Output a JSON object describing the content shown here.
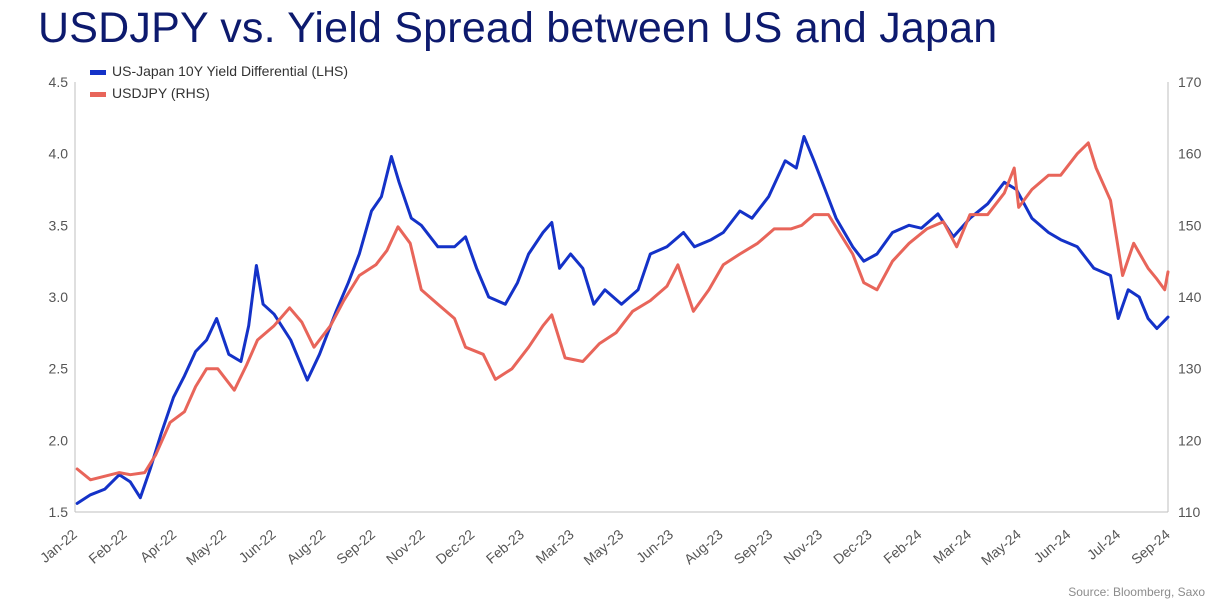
{
  "title": "USDJPY vs. Yield Spread between US and Japan",
  "source": "Source: Bloomberg, Saxo",
  "chart_data": {
    "type": "line",
    "title": "USDJPY vs. Yield Spread between US and Japan",
    "x_ticks": [
      "Jan-22",
      "Feb-22",
      "Apr-22",
      "May-22",
      "Jun-22",
      "Aug-22",
      "Sep-22",
      "Nov-22",
      "Dec-22",
      "Feb-23",
      "Mar-23",
      "May-23",
      "Jun-23",
      "Aug-23",
      "Sep-23",
      "Nov-23",
      "Dec-23",
      "Feb-24",
      "Mar-24",
      "May-24",
      "Jun-24",
      "Jul-24",
      "Sep-24"
    ],
    "x_range": [
      "2022-01-01",
      "2024-09-15"
    ],
    "y_left": {
      "ticks": [
        "1.5",
        "2.0",
        "2.5",
        "3.0",
        "3.5",
        "4.0",
        "4.5"
      ],
      "min": 1.5,
      "max": 4.5
    },
    "y_right": {
      "ticks": [
        "110",
        "120",
        "130",
        "140",
        "150",
        "160",
        "170"
      ],
      "min": 110,
      "max": 170
    },
    "grid": false,
    "legend_position": "top-left",
    "series": [
      {
        "name": "US-Japan 10Y Yield Differential (LHS)",
        "axis": "left",
        "color": "#1432c8",
        "points": [
          [
            "2022-01-03",
            1.56
          ],
          [
            "2022-01-15",
            1.62
          ],
          [
            "2022-01-28",
            1.66
          ],
          [
            "2022-02-10",
            1.76
          ],
          [
            "2022-02-20",
            1.71
          ],
          [
            "2022-03-01",
            1.6
          ],
          [
            "2022-03-10",
            1.8
          ],
          [
            "2022-03-20",
            2.05
          ],
          [
            "2022-03-31",
            2.3
          ],
          [
            "2022-04-10",
            2.45
          ],
          [
            "2022-04-20",
            2.62
          ],
          [
            "2022-04-30",
            2.7
          ],
          [
            "2022-05-09",
            2.85
          ],
          [
            "2022-05-20",
            2.6
          ],
          [
            "2022-05-31",
            2.55
          ],
          [
            "2022-06-07",
            2.8
          ],
          [
            "2022-06-14",
            3.22
          ],
          [
            "2022-06-20",
            2.95
          ],
          [
            "2022-06-30",
            2.88
          ],
          [
            "2022-07-15",
            2.7
          ],
          [
            "2022-07-30",
            2.42
          ],
          [
            "2022-08-10",
            2.6
          ],
          [
            "2022-08-25",
            2.9
          ],
          [
            "2022-09-05",
            3.1
          ],
          [
            "2022-09-15",
            3.3
          ],
          [
            "2022-09-26",
            3.6
          ],
          [
            "2022-10-05",
            3.7
          ],
          [
            "2022-10-14",
            3.98
          ],
          [
            "2022-10-21",
            3.8
          ],
          [
            "2022-11-01",
            3.55
          ],
          [
            "2022-11-10",
            3.5
          ],
          [
            "2022-11-25",
            3.35
          ],
          [
            "2022-12-10",
            3.35
          ],
          [
            "2022-12-20",
            3.42
          ],
          [
            "2022-12-30",
            3.2
          ],
          [
            "2023-01-10",
            3.0
          ],
          [
            "2023-01-25",
            2.95
          ],
          [
            "2023-02-05",
            3.1
          ],
          [
            "2023-02-15",
            3.3
          ],
          [
            "2023-02-28",
            3.45
          ],
          [
            "2023-03-08",
            3.52
          ],
          [
            "2023-03-15",
            3.2
          ],
          [
            "2023-03-25",
            3.3
          ],
          [
            "2023-04-05",
            3.2
          ],
          [
            "2023-04-15",
            2.95
          ],
          [
            "2023-04-25",
            3.05
          ],
          [
            "2023-05-10",
            2.95
          ],
          [
            "2023-05-25",
            3.05
          ],
          [
            "2023-06-05",
            3.3
          ],
          [
            "2023-06-20",
            3.35
          ],
          [
            "2023-07-05",
            3.45
          ],
          [
            "2023-07-15",
            3.35
          ],
          [
            "2023-07-30",
            3.4
          ],
          [
            "2023-08-10",
            3.45
          ],
          [
            "2023-08-25",
            3.6
          ],
          [
            "2023-09-05",
            3.55
          ],
          [
            "2023-09-20",
            3.7
          ],
          [
            "2023-10-05",
            3.95
          ],
          [
            "2023-10-15",
            3.9
          ],
          [
            "2023-10-22",
            4.12
          ],
          [
            "2023-10-31",
            3.95
          ],
          [
            "2023-11-10",
            3.75
          ],
          [
            "2023-11-20",
            3.55
          ],
          [
            "2023-12-05",
            3.35
          ],
          [
            "2023-12-15",
            3.25
          ],
          [
            "2023-12-27",
            3.3
          ],
          [
            "2024-01-10",
            3.45
          ],
          [
            "2024-01-25",
            3.5
          ],
          [
            "2024-02-05",
            3.48
          ],
          [
            "2024-02-20",
            3.58
          ],
          [
            "2024-03-05",
            3.42
          ],
          [
            "2024-03-20",
            3.55
          ],
          [
            "2024-04-05",
            3.65
          ],
          [
            "2024-04-20",
            3.8
          ],
          [
            "2024-05-01",
            3.75
          ],
          [
            "2024-05-15",
            3.55
          ],
          [
            "2024-05-30",
            3.45
          ],
          [
            "2024-06-10",
            3.4
          ],
          [
            "2024-06-25",
            3.35
          ],
          [
            "2024-07-10",
            3.2
          ],
          [
            "2024-07-25",
            3.15
          ],
          [
            "2024-08-01",
            2.85
          ],
          [
            "2024-08-10",
            3.05
          ],
          [
            "2024-08-20",
            3.0
          ],
          [
            "2024-08-28",
            2.85
          ],
          [
            "2024-09-05",
            2.78
          ],
          [
            "2024-09-15",
            2.86
          ]
        ]
      },
      {
        "name": "USDJPY (RHS)",
        "axis": "right",
        "color": "#e8655a",
        "points": [
          [
            "2022-01-03",
            116.0
          ],
          [
            "2022-01-15",
            114.5
          ],
          [
            "2022-01-28",
            115.0
          ],
          [
            "2022-02-10",
            115.5
          ],
          [
            "2022-02-20",
            115.2
          ],
          [
            "2022-03-05",
            115.5
          ],
          [
            "2022-03-15",
            118.0
          ],
          [
            "2022-03-28",
            122.5
          ],
          [
            "2022-04-10",
            124.0
          ],
          [
            "2022-04-20",
            127.5
          ],
          [
            "2022-04-30",
            130.0
          ],
          [
            "2022-05-10",
            130.0
          ],
          [
            "2022-05-25",
            127.0
          ],
          [
            "2022-06-05",
            130.5
          ],
          [
            "2022-06-15",
            134.0
          ],
          [
            "2022-06-30",
            136.0
          ],
          [
            "2022-07-14",
            138.5
          ],
          [
            "2022-07-25",
            136.5
          ],
          [
            "2022-08-05",
            133.0
          ],
          [
            "2022-08-20",
            136.0
          ],
          [
            "2022-09-01",
            139.5
          ],
          [
            "2022-09-15",
            143.0
          ],
          [
            "2022-09-30",
            144.5
          ],
          [
            "2022-10-10",
            146.5
          ],
          [
            "2022-10-20",
            149.8
          ],
          [
            "2022-10-31",
            147.5
          ],
          [
            "2022-11-10",
            141.0
          ],
          [
            "2022-11-25",
            139.0
          ],
          [
            "2022-12-10",
            137.0
          ],
          [
            "2022-12-20",
            133.0
          ],
          [
            "2023-01-05",
            132.0
          ],
          [
            "2023-01-16",
            128.5
          ],
          [
            "2023-01-31",
            130.0
          ],
          [
            "2023-02-15",
            133.0
          ],
          [
            "2023-02-28",
            136.0
          ],
          [
            "2023-03-08",
            137.5
          ],
          [
            "2023-03-20",
            131.5
          ],
          [
            "2023-04-05",
            131.0
          ],
          [
            "2023-04-20",
            133.5
          ],
          [
            "2023-05-05",
            135.0
          ],
          [
            "2023-05-20",
            138.0
          ],
          [
            "2023-06-05",
            139.5
          ],
          [
            "2023-06-20",
            141.5
          ],
          [
            "2023-06-30",
            144.5
          ],
          [
            "2023-07-14",
            138.0
          ],
          [
            "2023-07-28",
            141.0
          ],
          [
            "2023-08-10",
            144.5
          ],
          [
            "2023-08-25",
            146.0
          ],
          [
            "2023-09-10",
            147.5
          ],
          [
            "2023-09-25",
            149.5
          ],
          [
            "2023-10-10",
            149.5
          ],
          [
            "2023-10-20",
            150.0
          ],
          [
            "2023-10-31",
            151.5
          ],
          [
            "2023-11-13",
            151.5
          ],
          [
            "2023-11-25",
            148.5
          ],
          [
            "2023-12-05",
            146.0
          ],
          [
            "2023-12-15",
            142.0
          ],
          [
            "2023-12-27",
            141.0
          ],
          [
            "2024-01-10",
            145.0
          ],
          [
            "2024-01-25",
            147.5
          ],
          [
            "2024-02-10",
            149.5
          ],
          [
            "2024-02-25",
            150.5
          ],
          [
            "2024-03-08",
            147.0
          ],
          [
            "2024-03-20",
            151.5
          ],
          [
            "2024-04-05",
            151.5
          ],
          [
            "2024-04-20",
            154.5
          ],
          [
            "2024-04-29",
            158.0
          ],
          [
            "2024-05-03",
            152.5
          ],
          [
            "2024-05-15",
            155.0
          ],
          [
            "2024-05-30",
            157.0
          ],
          [
            "2024-06-10",
            157.0
          ],
          [
            "2024-06-25",
            160.0
          ],
          [
            "2024-07-05",
            161.5
          ],
          [
            "2024-07-12",
            158.0
          ],
          [
            "2024-07-25",
            153.5
          ],
          [
            "2024-08-05",
            143.0
          ],
          [
            "2024-08-15",
            147.5
          ],
          [
            "2024-08-28",
            144.0
          ],
          [
            "2024-09-05",
            142.5
          ],
          [
            "2024-09-12",
            141.0
          ],
          [
            "2024-09-15",
            143.5
          ]
        ]
      }
    ]
  }
}
